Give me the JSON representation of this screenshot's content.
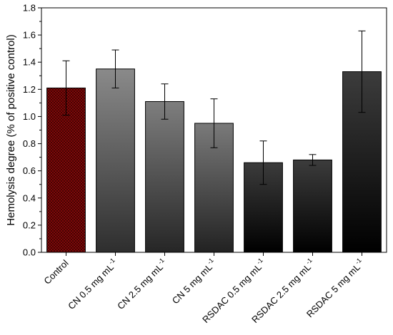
{
  "chart_data": {
    "type": "bar",
    "title": "",
    "xlabel": "",
    "ylabel": "Hemolysis degree (% of positive control)",
    "ylim": [
      0,
      1.8
    ],
    "yticks": [
      "0.0",
      "0.2",
      "0.4",
      "0.6",
      "0.8",
      "1.0",
      "1.2",
      "1.4",
      "1.6",
      "1.8"
    ],
    "grid": false,
    "legend": "none",
    "categories": [
      {
        "main": "Control",
        "sup": ""
      },
      {
        "main": "CN 0.5 mg mL",
        "sup": "-1"
      },
      {
        "main": "CN 2.5 mg mL",
        "sup": "-1"
      },
      {
        "main": "CN 5 mg mL",
        "sup": "-1"
      },
      {
        "main": "RSDAC 0.5 mg mL",
        "sup": "-1"
      },
      {
        "main": "RSDAC 2.5 mg mL",
        "sup": "-1"
      },
      {
        "main": "RSDAC 5 mg mL",
        "sup": "-1"
      }
    ],
    "values": [
      1.21,
      1.35,
      1.11,
      0.95,
      0.66,
      0.68,
      1.33
    ],
    "errors": [
      0.2,
      0.14,
      0.13,
      0.18,
      0.16,
      0.04,
      0.3
    ],
    "bar_styles": [
      {
        "fill": "crosshatch",
        "top": "#9a0d0d",
        "bottom": "#9a0d0d"
      },
      {
        "fill": "gradient",
        "top": "#8a8a8a",
        "bottom": "#2e2e2e"
      },
      {
        "fill": "gradient",
        "top": "#7e7e7e",
        "bottom": "#262626"
      },
      {
        "fill": "gradient",
        "top": "#7a7a7a",
        "bottom": "#222222"
      },
      {
        "fill": "gradient",
        "top": "#3c3c3c",
        "bottom": "#000000"
      },
      {
        "fill": "gradient",
        "top": "#3c3c3c",
        "bottom": "#000000"
      },
      {
        "fill": "gradient",
        "top": "#3c3c3c",
        "bottom": "#000000"
      }
    ]
  }
}
